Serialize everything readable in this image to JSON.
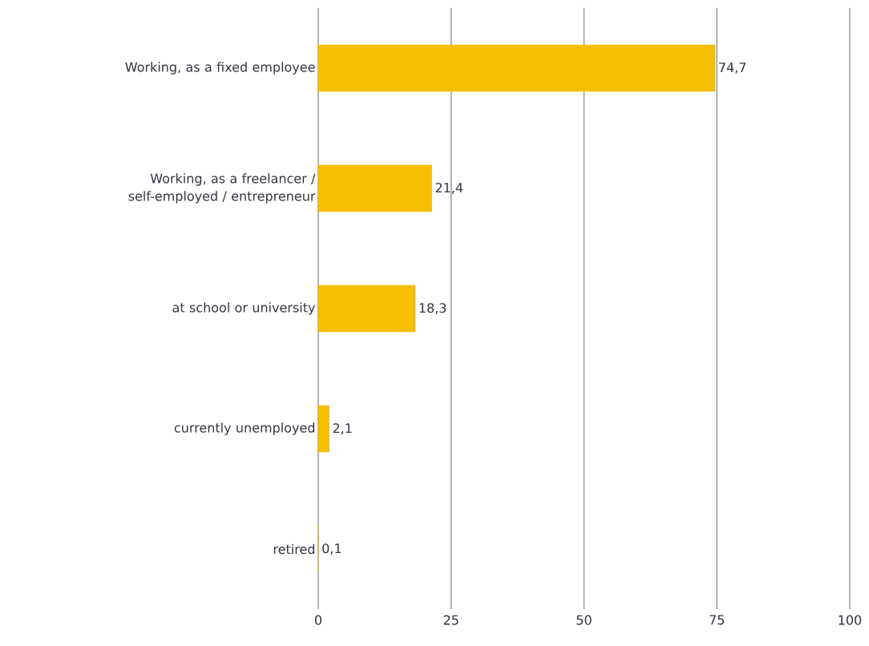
{
  "chart_data": {
    "type": "bar",
    "orientation": "horizontal",
    "categories": [
      "Working, as a fixed employee",
      "Working, as a freelancer / self-employed / entrepreneur",
      "at school or university",
      "currently unemployed",
      "retired"
    ],
    "values": [
      74.7,
      21.4,
      18.3,
      2.1,
      0.1
    ],
    "value_labels": [
      "74,7",
      "21,4",
      "18,3",
      "2,1",
      "0,1"
    ],
    "color": "#f5be00",
    "xlim": [
      0,
      100
    ],
    "xticks": [
      0,
      25,
      50,
      75,
      100
    ],
    "grid": "x"
  }
}
